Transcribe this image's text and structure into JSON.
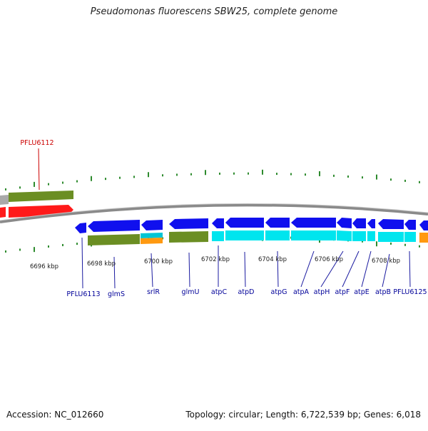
{
  "title": "Pseudomonas fluorescens SBW25, complete genome",
  "footer": {
    "accession": "Accession: NC_012660",
    "summary": "Topology: circular; Length: 6,722,539 bp; Genes: 6,018"
  },
  "colors": {
    "gene_forward": "#ff1a1a",
    "gene_reverse": "#1010ee",
    "cds_olive": "#6b8e23",
    "cds_cyan": "#00e5ee",
    "cds_orange": "#ff9910",
    "label_forward": "#cc0000",
    "label_reverse": "#000099",
    "tick": "#2e8b2e",
    "backbone": "#808080"
  },
  "scale_labels": [
    "6696 kbp",
    "6698 kbp",
    "6700 kbp",
    "6702 kbp",
    "6704 kbp",
    "6706 kbp",
    "6708 kbp"
  ],
  "forward_genes": [
    "PFLU6112"
  ],
  "reverse_genes": [
    "PFLU6113",
    "glmS",
    "srlR",
    "glmU",
    "atpC",
    "atpD",
    "atpG",
    "atpA",
    "atpH",
    "atpF",
    "atpE",
    "atpB",
    "PFLU6125"
  ]
}
